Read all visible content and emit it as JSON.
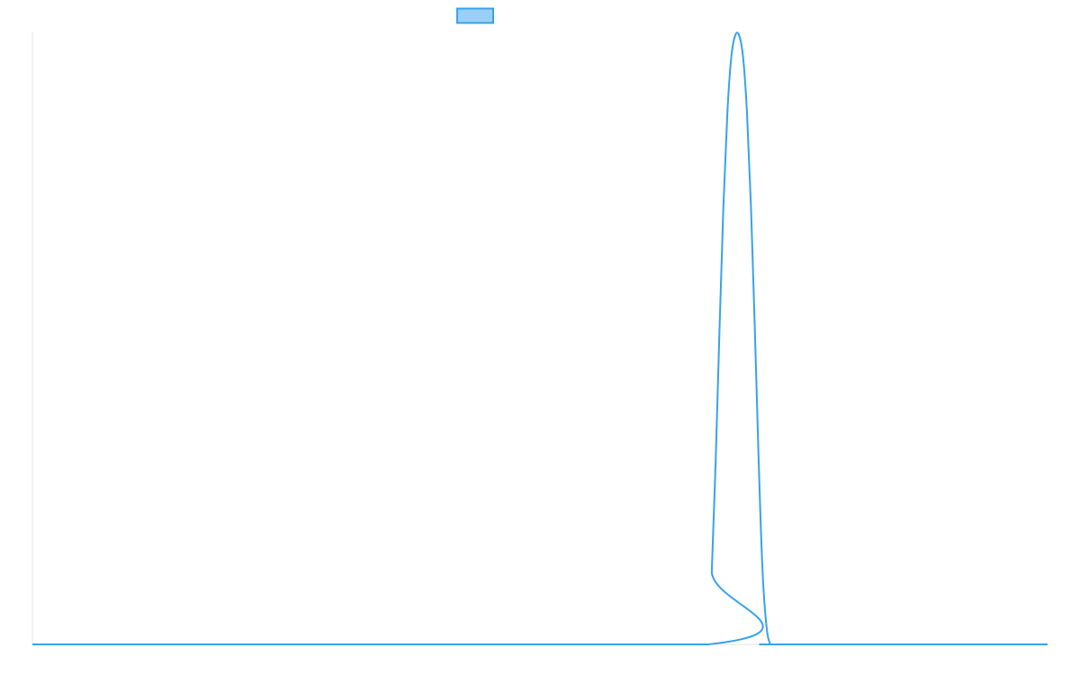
{
  "chart_data": {
    "type": "line",
    "title": "",
    "xlabel": "",
    "ylabel": "",
    "grid": false,
    "legend_placement": "top",
    "colors": {
      "series_line": "#36a2eb",
      "legend_fill": "#9ad0f5",
      "axis": "#e6e6e6"
    },
    "x_range": [
      0,
      52
    ],
    "y_range": [
      0,
      1
    ],
    "series": [
      {
        "name": "",
        "x": [
          0,
          34.6,
          34.8,
          35.0,
          35.2,
          35.4,
          35.6,
          35.8,
          36.0,
          36.2,
          36.4,
          36.6,
          36.8,
          37.0,
          37.2,
          37.4,
          37.6,
          37.8,
          38.0,
          38.2,
          38.4,
          52
        ],
        "y": [
          0,
          0,
          0.12,
          0.3,
          0.52,
          0.72,
          0.87,
          0.96,
          0.995,
          0.995,
          0.96,
          0.87,
          0.72,
          0.52,
          0.3,
          0.12,
          0.03,
          0,
          0,
          0,
          0,
          0
        ]
      }
    ]
  }
}
